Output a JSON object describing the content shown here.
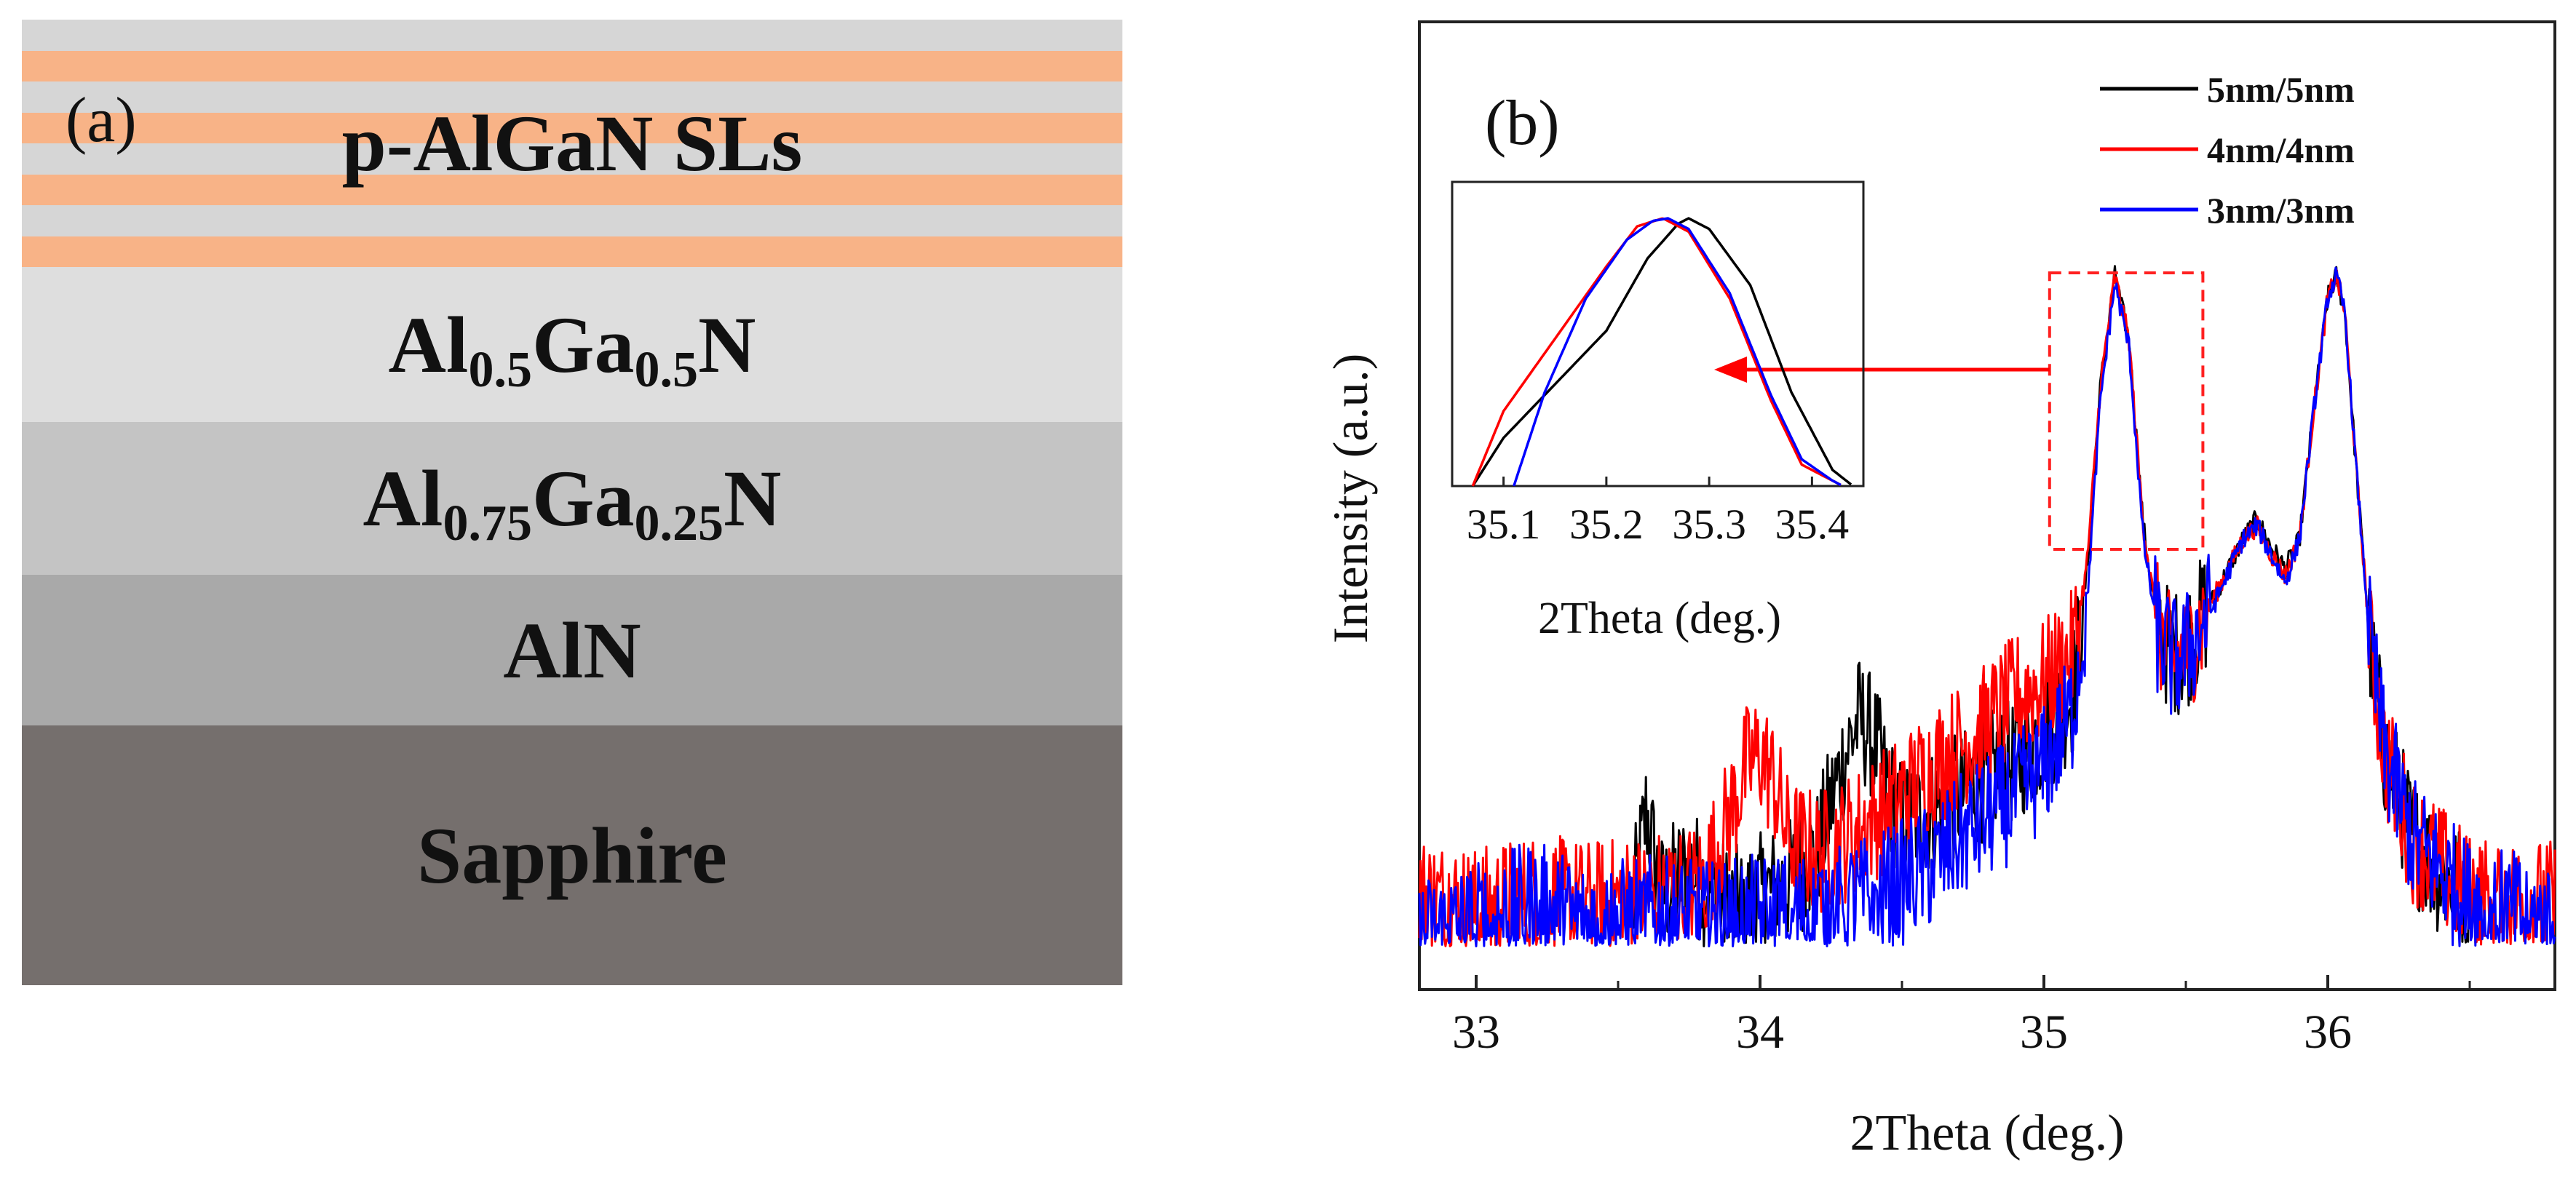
{
  "panel_a": {
    "label": "(a)",
    "stripe_color": "#f8b387",
    "layers": [
      {
        "name": "p-AlGaN SLs",
        "text": "p-AlGaN SLs",
        "color": "#d6d6d6"
      },
      {
        "name": "al05",
        "parts": [
          "Al",
          "0.5",
          "Ga",
          "0.5",
          "N"
        ],
        "color": "#dedede"
      },
      {
        "name": "al075",
        "parts": [
          "Al",
          "0.75",
          "Ga",
          "0.25",
          "N"
        ],
        "color": "#c4c4c4"
      },
      {
        "name": "aln",
        "text": "AlN",
        "color": "#a9a9a9"
      },
      {
        "name": "sapphire",
        "text": "Sapphire",
        "color": "#756f6d"
      }
    ]
  },
  "chart_data": [
    {
      "type": "line",
      "panel_label": "(b)",
      "xlabel": "2Theta (deg.)",
      "ylabel": "Intensity (a.u.)",
      "xlim": [
        32.8,
        36.8
      ],
      "ylim": [
        0,
        1
      ],
      "xticks": [
        "33",
        "34",
        "35",
        "36"
      ],
      "yticks": [],
      "legend_position": "top-right",
      "series": [
        {
          "name": "5nm/5nm",
          "color": "#000000",
          "x": [
            33.55,
            33.6,
            33.65,
            33.7,
            33.75,
            33.9,
            34.0,
            34.1,
            34.2,
            34.3,
            34.35,
            34.4,
            34.45,
            34.5,
            34.6,
            34.7,
            34.8,
            34.9,
            35.0,
            35.1,
            35.15,
            35.2,
            35.25,
            35.3,
            35.35,
            35.4,
            35.45,
            35.5,
            35.6,
            35.7,
            35.75,
            35.8,
            35.85,
            35.9,
            35.95,
            36.0,
            36.03,
            36.06,
            36.1,
            36.15,
            36.2,
            36.3,
            36.4,
            36.5
          ],
          "y": [
            0.08,
            0.22,
            0.1,
            0.12,
            0.14,
            0.08,
            0.1,
            0.12,
            0.16,
            0.3,
            0.35,
            0.32,
            0.25,
            0.2,
            0.22,
            0.24,
            0.27,
            0.29,
            0.33,
            0.38,
            0.55,
            0.82,
            0.97,
            0.88,
            0.62,
            0.48,
            0.44,
            0.45,
            0.52,
            0.6,
            0.63,
            0.59,
            0.56,
            0.6,
            0.78,
            0.94,
            0.97,
            0.92,
            0.7,
            0.45,
            0.3,
            0.18,
            0.13,
            0.1
          ]
        },
        {
          "name": "4nm/4nm",
          "color": "#ff0000",
          "x": [
            32.8,
            33.0,
            33.2,
            33.4,
            33.6,
            33.8,
            33.9,
            33.95,
            34.0,
            34.05,
            34.1,
            34.2,
            34.3,
            34.4,
            34.5,
            34.6,
            34.7,
            34.8,
            34.9,
            35.0,
            35.1,
            35.15,
            35.2,
            35.25,
            35.3,
            35.35,
            35.4,
            35.45,
            35.5,
            35.6,
            35.7,
            35.75,
            35.8,
            35.85,
            35.9,
            35.95,
            36.0,
            36.03,
            36.06,
            36.1,
            36.15,
            36.2,
            36.3,
            36.5,
            36.8
          ],
          "y": [
            0.1,
            0.08,
            0.1,
            0.09,
            0.1,
            0.12,
            0.22,
            0.28,
            0.3,
            0.26,
            0.18,
            0.16,
            0.18,
            0.21,
            0.24,
            0.28,
            0.31,
            0.34,
            0.38,
            0.4,
            0.44,
            0.56,
            0.82,
            0.97,
            0.88,
            0.62,
            0.48,
            0.43,
            0.44,
            0.52,
            0.6,
            0.62,
            0.58,
            0.55,
            0.6,
            0.78,
            0.94,
            0.97,
            0.92,
            0.7,
            0.45,
            0.3,
            0.18,
            0.1,
            0.09
          ]
        },
        {
          "name": "3nm/3nm",
          "color": "#0000ff",
          "x": [
            32.8,
            33.0,
            33.2,
            33.4,
            33.6,
            33.8,
            34.0,
            34.2,
            34.4,
            34.6,
            34.7,
            34.8,
            34.9,
            35.0,
            35.1,
            35.15,
            35.2,
            35.25,
            35.3,
            35.35,
            35.4,
            35.45,
            35.5,
            35.6,
            35.7,
            35.75,
            35.8,
            35.85,
            35.9,
            35.95,
            36.0,
            36.03,
            36.06,
            36.1,
            36.15,
            36.2,
            36.3,
            36.5,
            36.8
          ],
          "y": [
            0.04,
            0.06,
            0.09,
            0.06,
            0.07,
            0.06,
            0.07,
            0.08,
            0.1,
            0.14,
            0.18,
            0.21,
            0.24,
            0.28,
            0.36,
            0.5,
            0.8,
            0.96,
            0.87,
            0.6,
            0.47,
            0.43,
            0.44,
            0.51,
            0.6,
            0.62,
            0.58,
            0.54,
            0.6,
            0.78,
            0.94,
            0.97,
            0.92,
            0.7,
            0.45,
            0.3,
            0.18,
            0.09,
            0.06
          ]
        }
      ]
    },
    {
      "type": "line",
      "role": "inset",
      "xlabel": "2Theta (deg.)",
      "xlim": [
        35.05,
        35.45
      ],
      "ylim": [
        0,
        1
      ],
      "xticks": [
        "35.1",
        "35.2",
        "35.3",
        "35.4"
      ],
      "zoom_range": [
        35.02,
        35.56
      ],
      "series": [
        {
          "name": "5nm/5nm",
          "color": "#000000",
          "x": [
            35.07,
            35.1,
            35.15,
            35.2,
            35.24,
            35.27,
            35.28,
            35.3,
            35.34,
            35.38,
            35.42,
            35.44
          ],
          "y": [
            0.0,
            0.18,
            0.38,
            0.58,
            0.85,
            0.98,
            1.0,
            0.96,
            0.75,
            0.35,
            0.06,
            0.0
          ]
        },
        {
          "name": "4nm/4nm",
          "color": "#ff0000",
          "x": [
            35.07,
            35.1,
            35.15,
            35.2,
            35.23,
            35.255,
            35.28,
            35.32,
            35.36,
            35.39,
            35.42,
            35.43
          ],
          "y": [
            0.0,
            0.28,
            0.55,
            0.82,
            0.97,
            1.0,
            0.95,
            0.7,
            0.32,
            0.08,
            0.02,
            0.0
          ]
        },
        {
          "name": "3nm/3nm",
          "color": "#0000ff",
          "x": [
            35.11,
            35.14,
            35.18,
            35.22,
            35.245,
            35.26,
            35.28,
            35.32,
            35.36,
            35.39,
            35.42,
            35.43
          ],
          "y": [
            0.0,
            0.35,
            0.7,
            0.92,
            0.99,
            1.0,
            0.96,
            0.72,
            0.34,
            0.1,
            0.02,
            0.0
          ]
        }
      ]
    }
  ]
}
